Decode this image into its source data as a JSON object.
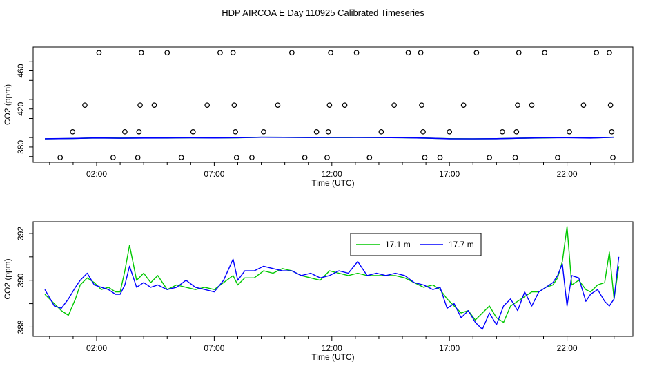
{
  "title": "HDP AIRCOA E  Day 110925  Calibrated Timeseries",
  "chart_data": [
    {
      "type": "scatter+line",
      "xlabel": "Time (UTC)",
      "ylabel": "CO2 (ppm)",
      "xlim": [
        -0.7,
        24.8
      ],
      "ylim": [
        364,
        485
      ],
      "x_ticks": [
        {
          "value": 2,
          "label": "02:00"
        },
        {
          "value": 7,
          "label": "07:00"
        },
        {
          "value": 12,
          "label": "12:00"
        },
        {
          "value": 17,
          "label": "17:00"
        },
        {
          "value": 22,
          "label": "22:00"
        }
      ],
      "y_ticks": [
        {
          "value": 380,
          "label": "380"
        },
        {
          "value": 420,
          "label": "420"
        },
        {
          "value": 460,
          "label": "460"
        }
      ],
      "calibration_points": [
        {
          "x": 0.45,
          "y": 369
        },
        {
          "x": 0.98,
          "y": 396
        },
        {
          "x": 1.5,
          "y": 424
        },
        {
          "x": 2.1,
          "y": 479
        },
        {
          "x": 2.7,
          "y": 369
        },
        {
          "x": 3.2,
          "y": 396
        },
        {
          "x": 3.75,
          "y": 369
        },
        {
          "x": 3.8,
          "y": 396
        },
        {
          "x": 3.85,
          "y": 424
        },
        {
          "x": 3.9,
          "y": 479
        },
        {
          "x": 4.45,
          "y": 424
        },
        {
          "x": 5.0,
          "y": 479
        },
        {
          "x": 5.6,
          "y": 369
        },
        {
          "x": 6.1,
          "y": 396
        },
        {
          "x": 6.7,
          "y": 424
        },
        {
          "x": 7.25,
          "y": 479
        },
        {
          "x": 7.8,
          "y": 479
        },
        {
          "x": 7.85,
          "y": 424
        },
        {
          "x": 7.9,
          "y": 396
        },
        {
          "x": 7.95,
          "y": 369
        },
        {
          "x": 8.6,
          "y": 369
        },
        {
          "x": 9.1,
          "y": 396
        },
        {
          "x": 9.7,
          "y": 424
        },
        {
          "x": 10.3,
          "y": 479
        },
        {
          "x": 10.85,
          "y": 369
        },
        {
          "x": 11.35,
          "y": 396
        },
        {
          "x": 11.8,
          "y": 369
        },
        {
          "x": 11.85,
          "y": 396
        },
        {
          "x": 11.9,
          "y": 424
        },
        {
          "x": 11.95,
          "y": 479
        },
        {
          "x": 12.55,
          "y": 424
        },
        {
          "x": 13.05,
          "y": 479
        },
        {
          "x": 13.6,
          "y": 369
        },
        {
          "x": 14.1,
          "y": 396
        },
        {
          "x": 14.65,
          "y": 424
        },
        {
          "x": 15.25,
          "y": 479
        },
        {
          "x": 15.78,
          "y": 479
        },
        {
          "x": 15.82,
          "y": 424
        },
        {
          "x": 15.88,
          "y": 396
        },
        {
          "x": 15.95,
          "y": 369
        },
        {
          "x": 16.6,
          "y": 369
        },
        {
          "x": 17.0,
          "y": 396
        },
        {
          "x": 17.6,
          "y": 424
        },
        {
          "x": 18.15,
          "y": 479
        },
        {
          "x": 18.7,
          "y": 369
        },
        {
          "x": 19.25,
          "y": 396
        },
        {
          "x": 19.8,
          "y": 369
        },
        {
          "x": 19.85,
          "y": 396
        },
        {
          "x": 19.9,
          "y": 424
        },
        {
          "x": 19.95,
          "y": 479
        },
        {
          "x": 20.5,
          "y": 424
        },
        {
          "x": 21.05,
          "y": 479
        },
        {
          "x": 21.6,
          "y": 369
        },
        {
          "x": 22.1,
          "y": 396
        },
        {
          "x": 22.7,
          "y": 424
        },
        {
          "x": 23.25,
          "y": 479
        },
        {
          "x": 23.8,
          "y": 479
        },
        {
          "x": 23.85,
          "y": 424
        },
        {
          "x": 23.9,
          "y": 396
        },
        {
          "x": 23.95,
          "y": 369
        }
      ],
      "series": [
        {
          "name": "17.1 m",
          "color": "#00c800",
          "x": [
            -0.2,
            1,
            2,
            3,
            4,
            5,
            6,
            7,
            8,
            9,
            10,
            11,
            12,
            13,
            14,
            15,
            16,
            17,
            18,
            19,
            20,
            21,
            22,
            23,
            24
          ],
          "values": [
            388.6,
            389.0,
            389.6,
            389.4,
            389.6,
            389.5,
            389.7,
            389.6,
            389.8,
            390.3,
            390.2,
            390.0,
            390.0,
            390.1,
            390.0,
            389.9,
            389.4,
            388.8,
            388.6,
            388.8,
            389.3,
            389.6,
            390.2,
            389.6,
            390.3
          ]
        },
        {
          "name": "17.7 m",
          "color": "#0000ff",
          "x": [
            -0.2,
            1,
            2,
            3,
            4,
            5,
            6,
            7,
            8,
            9,
            10,
            11,
            12,
            13,
            14,
            15,
            16,
            17,
            18,
            19,
            20,
            21,
            22,
            23,
            24
          ],
          "values": [
            388.7,
            389.1,
            389.6,
            389.3,
            389.5,
            389.6,
            389.7,
            389.6,
            389.9,
            390.3,
            390.2,
            390.0,
            390.1,
            390.1,
            390.0,
            389.9,
            389.4,
            388.7,
            388.6,
            388.8,
            389.3,
            389.7,
            389.9,
            389.5,
            390.3
          ]
        }
      ]
    },
    {
      "type": "line",
      "xlabel": "Time (UTC)",
      "ylabel": "CO2 (ppm)",
      "xlim": [
        -0.7,
        24.8
      ],
      "ylim": [
        387.6,
        392.5
      ],
      "grid": false,
      "legend": "top-right",
      "x_ticks": [
        {
          "value": 2,
          "label": "02:00"
        },
        {
          "value": 7,
          "label": "07:00"
        },
        {
          "value": 12,
          "label": "12:00"
        },
        {
          "value": 17,
          "label": "17:00"
        },
        {
          "value": 22,
          "label": "22:00"
        }
      ],
      "y_ticks": [
        {
          "value": 388,
          "label": "388"
        },
        {
          "value": 390,
          "label": "390"
        },
        {
          "value": 392,
          "label": "392"
        }
      ],
      "series": [
        {
          "name": "17.1 m",
          "color": "#00c800",
          "x": [
            -0.2,
            0.2,
            0.5,
            0.8,
            1.1,
            1.3,
            1.6,
            1.9,
            2.2,
            2.5,
            2.8,
            3.0,
            3.2,
            3.4,
            3.7,
            4.0,
            4.3,
            4.6,
            5.0,
            5.4,
            5.8,
            6.2,
            6.6,
            7.0,
            7.4,
            7.8,
            8.0,
            8.3,
            8.7,
            9.1,
            9.5,
            9.9,
            10.3,
            10.7,
            11.1,
            11.5,
            11.9,
            12.3,
            12.7,
            13.1,
            13.5,
            13.9,
            14.3,
            14.7,
            15.1,
            15.5,
            15.9,
            16.3,
            16.6,
            16.9,
            17.2,
            17.5,
            17.8,
            18.1,
            18.4,
            18.7,
            19.0,
            19.3,
            19.6,
            19.9,
            20.2,
            20.5,
            20.8,
            21.1,
            21.4,
            21.6,
            21.8,
            22.0,
            22.2,
            22.5,
            22.8,
            23.0,
            23.3,
            23.6,
            23.8,
            24.0,
            24.2
          ],
          "values": [
            389.4,
            389.0,
            388.7,
            388.5,
            389.2,
            389.8,
            390.1,
            389.9,
            389.6,
            389.7,
            389.5,
            389.5,
            390.4,
            391.5,
            390.0,
            390.3,
            389.9,
            390.2,
            389.6,
            389.8,
            389.7,
            389.6,
            389.7,
            389.6,
            389.9,
            390.2,
            389.8,
            390.1,
            390.1,
            390.4,
            390.3,
            390.5,
            390.4,
            390.2,
            390.1,
            390.0,
            390.4,
            390.3,
            390.2,
            390.3,
            390.2,
            390.2,
            390.2,
            390.2,
            390.1,
            389.9,
            389.7,
            389.8,
            389.6,
            389.2,
            388.9,
            388.6,
            388.7,
            388.3,
            388.6,
            388.9,
            388.4,
            388.2,
            388.9,
            389.1,
            389.3,
            389.5,
            389.5,
            389.7,
            389.8,
            390.1,
            390.8,
            392.3,
            389.8,
            390.0,
            389.6,
            389.5,
            389.8,
            389.9,
            391.2,
            389.2,
            390.6
          ]
        },
        {
          "name": "17.7 m",
          "color": "#0000ff",
          "x": [
            -0.2,
            0.2,
            0.5,
            0.8,
            1.1,
            1.3,
            1.6,
            1.9,
            2.2,
            2.5,
            2.8,
            3.0,
            3.2,
            3.4,
            3.7,
            4.0,
            4.3,
            4.6,
            5.0,
            5.4,
            5.8,
            6.2,
            6.6,
            7.0,
            7.4,
            7.8,
            8.0,
            8.3,
            8.7,
            9.1,
            9.5,
            9.9,
            10.3,
            10.7,
            11.1,
            11.5,
            11.9,
            12.3,
            12.7,
            13.1,
            13.5,
            13.9,
            14.3,
            14.7,
            15.1,
            15.5,
            15.9,
            16.3,
            16.6,
            16.9,
            17.2,
            17.5,
            17.8,
            18.1,
            18.4,
            18.7,
            19.0,
            19.3,
            19.6,
            19.9,
            20.2,
            20.5,
            20.8,
            21.1,
            21.4,
            21.6,
            21.8,
            22.0,
            22.2,
            22.5,
            22.8,
            23.0,
            23.3,
            23.6,
            23.8,
            24.0,
            24.2
          ],
          "values": [
            389.6,
            388.9,
            388.8,
            389.2,
            389.7,
            390.0,
            390.3,
            389.8,
            389.7,
            389.6,
            389.4,
            389.4,
            389.8,
            390.6,
            389.7,
            389.9,
            389.7,
            389.8,
            389.6,
            389.7,
            390.0,
            389.7,
            389.6,
            389.5,
            390.0,
            390.9,
            390.0,
            390.4,
            390.4,
            390.6,
            390.5,
            390.4,
            390.4,
            390.2,
            390.3,
            390.1,
            390.2,
            390.4,
            390.3,
            390.8,
            390.2,
            390.3,
            390.2,
            390.3,
            390.2,
            389.9,
            389.8,
            389.6,
            389.7,
            388.8,
            389.0,
            388.4,
            388.7,
            388.2,
            387.9,
            388.6,
            388.1,
            388.9,
            389.2,
            388.7,
            389.5,
            388.9,
            389.5,
            389.7,
            389.9,
            390.2,
            390.7,
            388.9,
            390.2,
            390.1,
            389.1,
            389.4,
            389.6,
            389.1,
            388.9,
            389.2,
            391.0
          ]
        }
      ]
    }
  ]
}
